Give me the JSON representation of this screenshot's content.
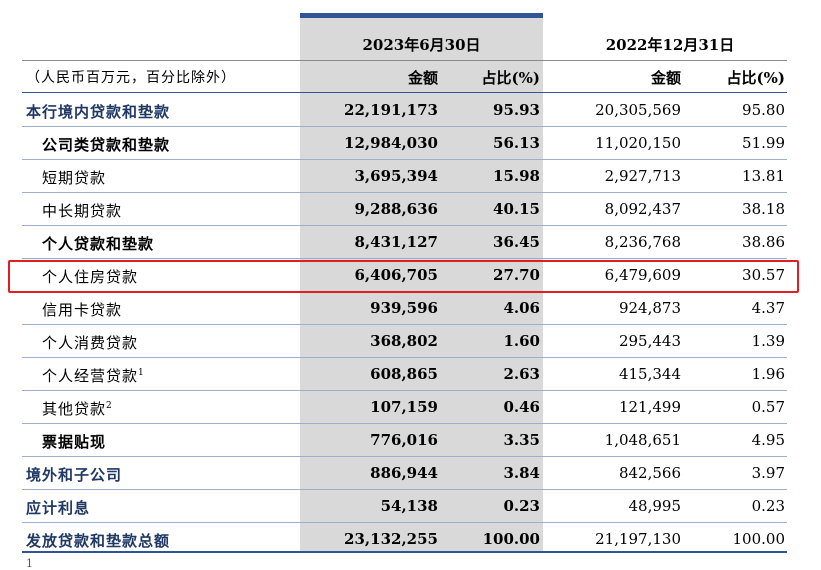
{
  "header": {
    "period_current": "2023年6月30日",
    "period_prior": "2022年12月31日",
    "unit_note": "（人民币百万元，百分比除外）",
    "col_amount": "金额",
    "col_ratio": "占比(%)"
  },
  "rows": [
    {
      "label": "本行境内贷款和垫款",
      "level": 0,
      "amt_2023": "22,191,173",
      "pct_2023": "95.93",
      "amt_2022": "20,305,569",
      "pct_2022": "95.80"
    },
    {
      "label": "公司类贷款和垫款",
      "level": 1,
      "amt_2023": "12,984,030",
      "pct_2023": "56.13",
      "amt_2022": "11,020,150",
      "pct_2022": "51.99"
    },
    {
      "label": "短期贷款",
      "level": 2,
      "amt_2023": "3,695,394",
      "pct_2023": "15.98",
      "amt_2022": "2,927,713",
      "pct_2022": "13.81"
    },
    {
      "label": "中长期贷款",
      "level": 2,
      "amt_2023": "9,288,636",
      "pct_2023": "40.15",
      "amt_2022": "8,092,437",
      "pct_2022": "38.18"
    },
    {
      "label": "个人贷款和垫款",
      "level": 1,
      "amt_2023": "8,431,127",
      "pct_2023": "36.45",
      "amt_2022": "8,236,768",
      "pct_2022": "38.86"
    },
    {
      "label": "个人住房贷款",
      "level": 2,
      "amt_2023": "6,406,705",
      "pct_2023": "27.70",
      "amt_2022": "6,479,609",
      "pct_2022": "30.57",
      "highlighted": true
    },
    {
      "label": "信用卡贷款",
      "level": 2,
      "amt_2023": "939,596",
      "pct_2023": "4.06",
      "amt_2022": "924,873",
      "pct_2022": "4.37"
    },
    {
      "label": "个人消费贷款",
      "level": 2,
      "amt_2023": "368,802",
      "pct_2023": "1.60",
      "amt_2022": "295,443",
      "pct_2022": "1.39"
    },
    {
      "label": "个人经营贷款",
      "sup": "1",
      "level": 2,
      "amt_2023": "608,865",
      "pct_2023": "2.63",
      "amt_2022": "415,344",
      "pct_2022": "1.96"
    },
    {
      "label": "其他贷款",
      "sup": "2",
      "level": 2,
      "amt_2023": "107,159",
      "pct_2023": "0.46",
      "amt_2022": "121,499",
      "pct_2022": "0.57"
    },
    {
      "label": "票据贴现",
      "level": 1,
      "amt_2023": "776,016",
      "pct_2023": "3.35",
      "amt_2022": "1,048,651",
      "pct_2022": "4.95"
    },
    {
      "label": "境外和子公司",
      "level": 0,
      "amt_2023": "886,944",
      "pct_2023": "3.84",
      "amt_2022": "842,566",
      "pct_2022": "3.97"
    },
    {
      "label": "应计利息",
      "level": 0,
      "amt_2023": "54,138",
      "pct_2023": "0.23",
      "amt_2022": "48,995",
      "pct_2022": "0.23"
    },
    {
      "label": "发放贷款和垫款总额",
      "level": 0,
      "amt_2023": "23,132,255",
      "pct_2023": "100.00",
      "amt_2022": "21,197,130",
      "pct_2022": "100.00"
    }
  ],
  "colors": {
    "accent": "#2f5597",
    "shade": "#d9d9d9",
    "highlight": "#e02020",
    "label_blue": "#1f3864"
  }
}
